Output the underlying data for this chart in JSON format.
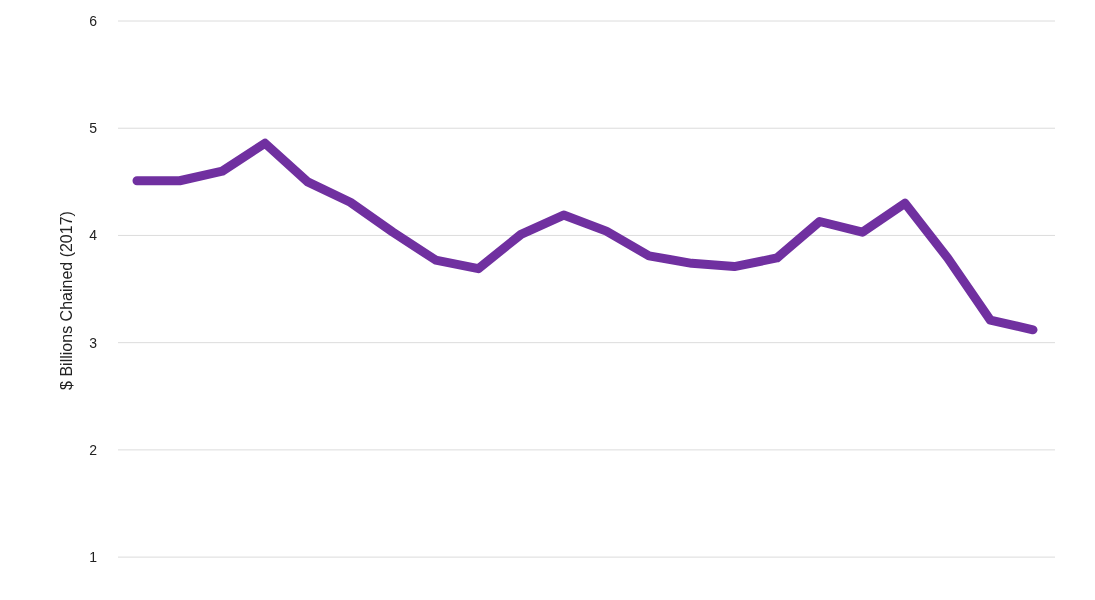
{
  "chart_data": {
    "type": "line",
    "ylabel": "$ Billions Chained (2017)",
    "categories": [
      null,
      null,
      null,
      null,
      null,
      null,
      null,
      null,
      null,
      null,
      null,
      null,
      null,
      null,
      null,
      null,
      null,
      null,
      null,
      null,
      null,
      null
    ],
    "series": [
      {
        "color": "#7030a0",
        "values": [
          4.51,
          4.51,
          4.6,
          4.86,
          4.5,
          4.31,
          4.03,
          3.77,
          3.69,
          4.01,
          4.19,
          4.04,
          3.81,
          3.74,
          3.71,
          3.79,
          4.13,
          4.03,
          4.3,
          3.79,
          3.21,
          3.12
        ]
      }
    ],
    "ylim": [
      0.6,
      6
    ],
    "yticks": [
      1,
      2,
      3,
      4,
      5,
      6
    ],
    "grid": "y",
    "marker": "none",
    "line_style": "solid"
  }
}
